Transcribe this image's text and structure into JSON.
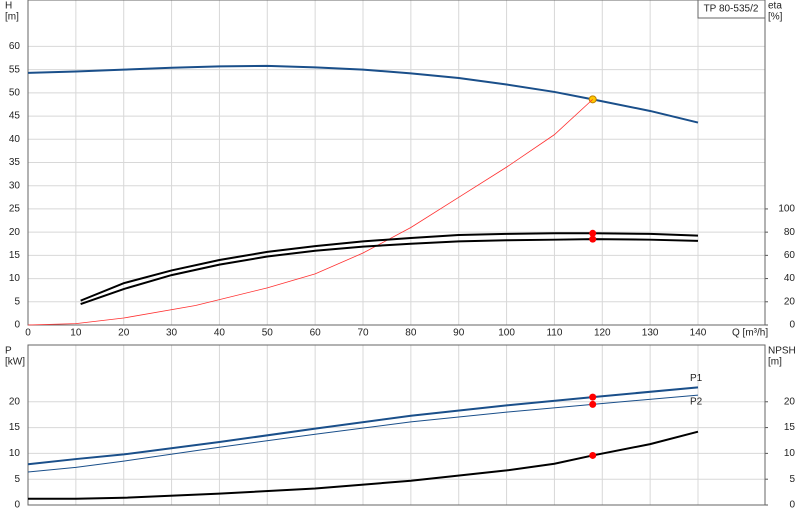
{
  "chart_data": [
    {
      "type": "line",
      "title": "TP 80-535/2",
      "ylabel": [
        "H",
        "[m]"
      ],
      "y2label": [
        "eta",
        "[%]"
      ],
      "xlabel": "Q [m³/h]",
      "xlim": [
        0,
        154
      ],
      "xticks": [
        0,
        10,
        20,
        30,
        40,
        50,
        60,
        70,
        80,
        90,
        100,
        110,
        120,
        130,
        140
      ],
      "ylim": [
        0,
        70
      ],
      "yticks": [
        0,
        5,
        10,
        15,
        20,
        25,
        30,
        35,
        40,
        45,
        50,
        55,
        60
      ],
      "y2lim": [
        0,
        280
      ],
      "y2ticks": [
        0,
        20,
        40,
        60,
        80,
        100
      ],
      "grid": true,
      "show_xtick_labels": true,
      "series": [
        {
          "color": "#1a4f8a",
          "width": 2,
          "x": [
            0,
            10,
            20,
            30,
            40,
            50,
            60,
            70,
            80,
            90,
            100,
            110,
            118,
            130,
            140
          ],
          "values": [
            54.3,
            54.6,
            55,
            55.4,
            55.7,
            55.8,
            55.5,
            55,
            54.2,
            53.2,
            51.8,
            50.2,
            48.6,
            46.1,
            43.6
          ],
          "points": [
            {
              "x": 118,
              "y": 48.6,
              "color": "#ffc800"
            }
          ]
        },
        {
          "color": "#ff3030",
          "width": 0.8,
          "x": [
            0,
            10,
            20,
            35,
            50,
            60,
            70,
            80,
            90,
            100,
            110,
            118
          ],
          "values": [
            0,
            0.3,
            1.5,
            4.2,
            8,
            11,
            15.5,
            21,
            27.5,
            34,
            41,
            48.6
          ],
          "points": []
        },
        {
          "color": "#000000",
          "width": 2,
          "axis": "y2",
          "x": [
            11,
            20,
            30,
            40,
            50,
            60,
            70,
            80,
            90,
            100,
            110,
            118,
            130,
            140
          ],
          "values": [
            21,
            36,
            47,
            56,
            63,
            68,
            72,
            75,
            77.5,
            78.5,
            79,
            79,
            78.5,
            77
          ],
          "points": [
            {
              "x": 118,
              "y": 79,
              "color": "#ff0000"
            }
          ]
        },
        {
          "color": "#000000",
          "width": 2,
          "axis": "y2",
          "x": [
            11,
            20,
            30,
            40,
            50,
            60,
            70,
            80,
            90,
            100,
            110,
            118,
            130,
            140
          ],
          "values": [
            18,
            31,
            43,
            52,
            59,
            64,
            67.5,
            70,
            72,
            73,
            73.5,
            74,
            73.5,
            72.5
          ],
          "points": [
            {
              "x": 118,
              "y": 74,
              "color": "#ff0000"
            }
          ]
        }
      ]
    },
    {
      "type": "line",
      "ylabel": [
        "P",
        "[kW]"
      ],
      "y2label": [
        "NPSH",
        "[m]"
      ],
      "xlim": [
        0,
        154
      ],
      "xticks": [
        0,
        10,
        20,
        30,
        40,
        50,
        60,
        70,
        80,
        90,
        100,
        110,
        120,
        130,
        140
      ],
      "ylim": [
        0,
        31
      ],
      "yticks": [
        0,
        5,
        10,
        15,
        20
      ],
      "y2lim": [
        0,
        31
      ],
      "y2ticks": [
        0,
        5,
        10,
        15,
        20
      ],
      "grid": true,
      "show_xtick_labels": false,
      "series": [
        {
          "name": "P1",
          "color": "#1a4f8a",
          "width": 2,
          "x": [
            0,
            10,
            20,
            40,
            60,
            80,
            100,
            118,
            140
          ],
          "values": [
            7.9,
            8.9,
            9.8,
            12.2,
            14.8,
            17.3,
            19.3,
            20.9,
            22.8
          ],
          "points": [
            {
              "x": 118,
              "y": 20.9,
              "color": "#ff0000"
            }
          ]
        },
        {
          "name": "P2",
          "color": "#1a4f8a",
          "width": 1,
          "x": [
            0,
            10,
            20,
            40,
            60,
            80,
            100,
            118,
            140
          ],
          "values": [
            6.4,
            7.3,
            8.5,
            11.2,
            13.7,
            16.1,
            18,
            19.5,
            21.3
          ],
          "points": [
            {
              "x": 118,
              "y": 19.5,
              "color": "#ff0000"
            }
          ]
        },
        {
          "color": "#000000",
          "width": 2,
          "axis": "y2",
          "x": [
            0,
            10,
            20,
            40,
            60,
            80,
            100,
            110,
            118,
            130,
            140
          ],
          "values": [
            1.2,
            1.2,
            1.4,
            2.2,
            3.2,
            4.7,
            6.7,
            8,
            9.6,
            11.8,
            14.2
          ],
          "points": [
            {
              "x": 118,
              "y": 9.6,
              "color": "#ff0000"
            }
          ]
        }
      ]
    }
  ]
}
